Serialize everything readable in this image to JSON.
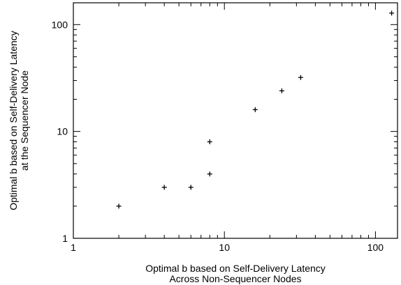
{
  "chart_data": {
    "type": "scatter",
    "title": "",
    "xlabel": [
      "Optimal b based on Self-Delivery Latency",
      "Across Non-Sequencer Nodes"
    ],
    "ylabel": [
      "Optimal b based on Self-Delivery Latency",
      "at the Sequencer Node"
    ],
    "xscale": "log",
    "yscale": "log",
    "xlim": [
      1,
      140
    ],
    "ylim": [
      1,
      160
    ],
    "xticks": [
      "1",
      "10",
      "100"
    ],
    "yticks": [
      "1",
      "10",
      "100"
    ],
    "grid": false,
    "legend": "none",
    "marker": "plus",
    "color": "#000000",
    "points": [
      {
        "x": 2,
        "y": 2
      },
      {
        "x": 4,
        "y": 3
      },
      {
        "x": 6,
        "y": 3
      },
      {
        "x": 8,
        "y": 4
      },
      {
        "x": 8,
        "y": 8
      },
      {
        "x": 16,
        "y": 16
      },
      {
        "x": 24,
        "y": 24
      },
      {
        "x": 32,
        "y": 32
      },
      {
        "x": 128,
        "y": 128
      }
    ]
  }
}
